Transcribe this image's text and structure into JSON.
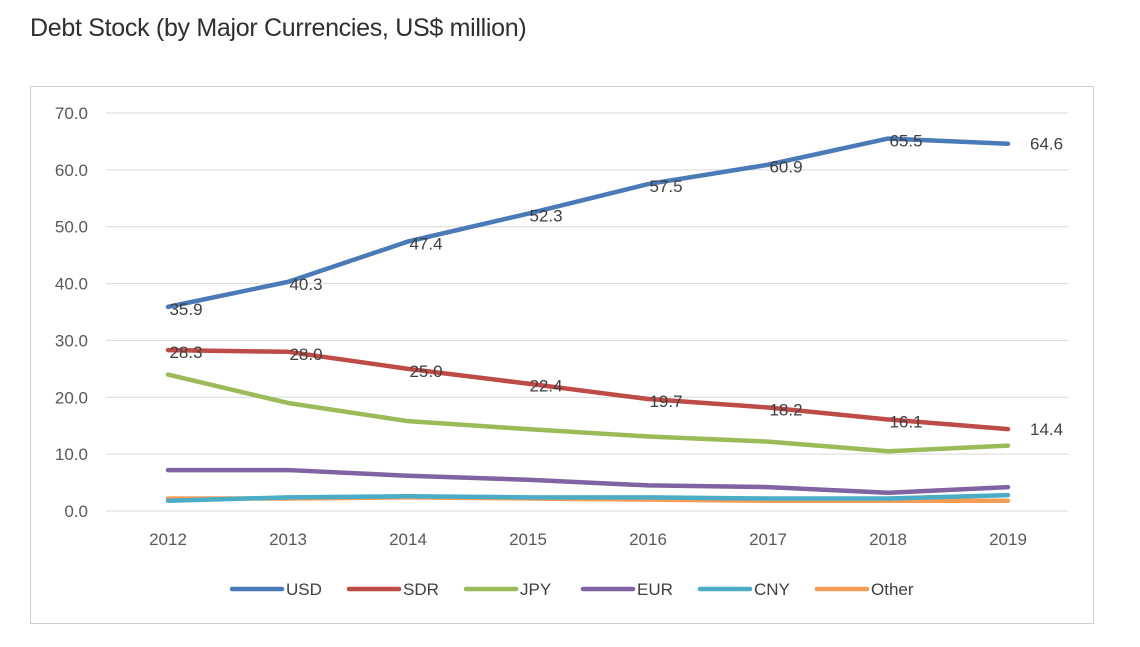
{
  "chart_data": {
    "type": "line",
    "title": "Debt Stock (by Major Currencies, US$ million)",
    "xlabel": "",
    "ylabel": "",
    "categories": [
      "2012",
      "2013",
      "2014",
      "2015",
      "2016",
      "2017",
      "2018",
      "2019"
    ],
    "ylim": [
      0,
      70
    ],
    "yticks": [
      "0.0",
      "10.0",
      "20.0",
      "30.0",
      "40.0",
      "50.0",
      "60.0",
      "70.0"
    ],
    "legend_position": "bottom",
    "grid": true,
    "series": [
      {
        "name": "USD",
        "color": "#4a7ab8",
        "values": [
          35.9,
          40.3,
          47.4,
          52.3,
          57.5,
          60.9,
          65.5,
          64.6
        ],
        "labels": [
          "35.9",
          "40.3",
          "47.4",
          "52.3",
          "57.5",
          "60.9",
          "65.5",
          "64.6"
        ]
      },
      {
        "name": "SDR",
        "color": "#bf4b47",
        "values": [
          28.3,
          28.0,
          25.0,
          22.4,
          19.7,
          18.2,
          16.1,
          14.4
        ],
        "labels": [
          "28.3",
          "28.0",
          "25.0",
          "22.4",
          "19.7",
          "18.2",
          "16.1",
          "14.4"
        ]
      },
      {
        "name": "JPY",
        "color": "#9bbb59",
        "values": [
          24.0,
          19.0,
          15.8,
          14.4,
          13.1,
          12.2,
          10.5,
          11.5
        ]
      },
      {
        "name": "EUR",
        "color": "#7f63a2",
        "values": [
          7.2,
          7.2,
          6.2,
          5.5,
          4.5,
          4.2,
          3.2,
          4.2
        ]
      },
      {
        "name": "CNY",
        "color": "#4bacc6",
        "values": [
          1.8,
          2.4,
          2.6,
          2.4,
          2.4,
          2.2,
          2.2,
          2.8
        ]
      },
      {
        "name": "Other",
        "color": "#f59d56",
        "values": [
          2.2,
          2.2,
          2.4,
          2.2,
          2.0,
          1.8,
          1.8,
          1.8
        ]
      }
    ]
  }
}
